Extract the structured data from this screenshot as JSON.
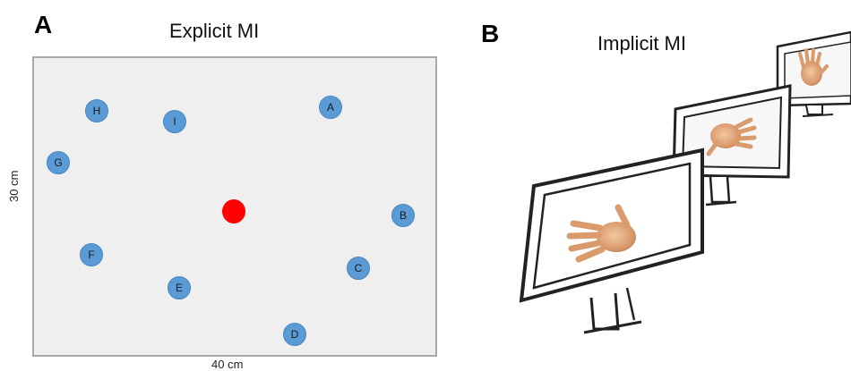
{
  "panel_a": {
    "letter": "A",
    "title": "Explicit MI",
    "width_label": "40 cm",
    "height_label": "30 cm",
    "target_color": "#5b9bd5",
    "center_color": "#ff0000",
    "targets": [
      {
        "id": "A",
        "label": "A"
      },
      {
        "id": "B",
        "label": "B"
      },
      {
        "id": "C",
        "label": "C"
      },
      {
        "id": "D",
        "label": "D"
      },
      {
        "id": "E",
        "label": "E"
      },
      {
        "id": "F",
        "label": "F"
      },
      {
        "id": "G",
        "label": "G"
      },
      {
        "id": "H",
        "label": "H"
      },
      {
        "id": "I",
        "label": "I"
      }
    ]
  },
  "panel_b": {
    "letter": "B",
    "title": "Implicit MI",
    "monitor_count": 3,
    "screen_content": "hand-icon"
  }
}
